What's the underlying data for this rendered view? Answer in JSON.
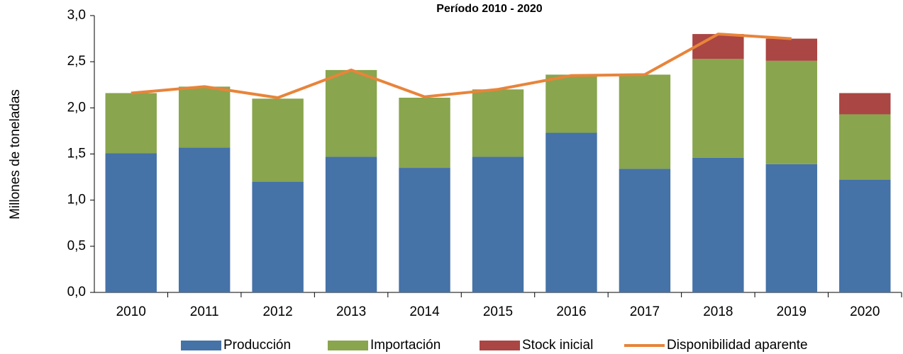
{
  "chart_data": {
    "type": "bar",
    "stacked": true,
    "title": "Período 2010 - 2020",
    "y_label": "Millones de toneladas",
    "categories": [
      "2010",
      "2011",
      "2012",
      "2013",
      "2014",
      "2015",
      "2016",
      "2017",
      "2018",
      "2019",
      "2020"
    ],
    "series": [
      {
        "name": "Producción",
        "type": "bar",
        "color": "#4572a7",
        "values": [
          1.51,
          1.57,
          1.2,
          1.47,
          1.35,
          1.47,
          1.73,
          1.34,
          1.46,
          1.39,
          1.22
        ]
      },
      {
        "name": "Importación",
        "type": "bar",
        "color": "#89a54e",
        "values": [
          0.65,
          0.66,
          0.9,
          0.94,
          0.76,
          0.73,
          0.63,
          1.02,
          1.07,
          1.12,
          0.71
        ]
      },
      {
        "name": "Stock inicial",
        "type": "bar",
        "color": "#aa4643",
        "values": [
          0,
          0,
          0,
          0,
          0,
          0,
          0,
          0,
          0.27,
          0.24,
          0.23
        ]
      },
      {
        "name": "Disponibilidad aparente",
        "type": "line",
        "color": "#e8843a",
        "values": [
          2.16,
          2.23,
          2.11,
          2.41,
          2.12,
          2.2,
          2.35,
          2.36,
          2.8,
          2.75,
          null
        ]
      }
    ],
    "ylim": [
      0,
      3
    ],
    "yticks": [
      {
        "value": 0,
        "label": "0,0"
      },
      {
        "value": 0.5,
        "label": "0,5"
      },
      {
        "value": 1,
        "label": "1,0"
      },
      {
        "value": 1.5,
        "label": "1,5"
      },
      {
        "value": 2,
        "label": "2,0"
      },
      {
        "value": 2.5,
        "label": "2,5"
      },
      {
        "value": 3,
        "label": "3,0"
      }
    ],
    "legend": "bottom"
  }
}
